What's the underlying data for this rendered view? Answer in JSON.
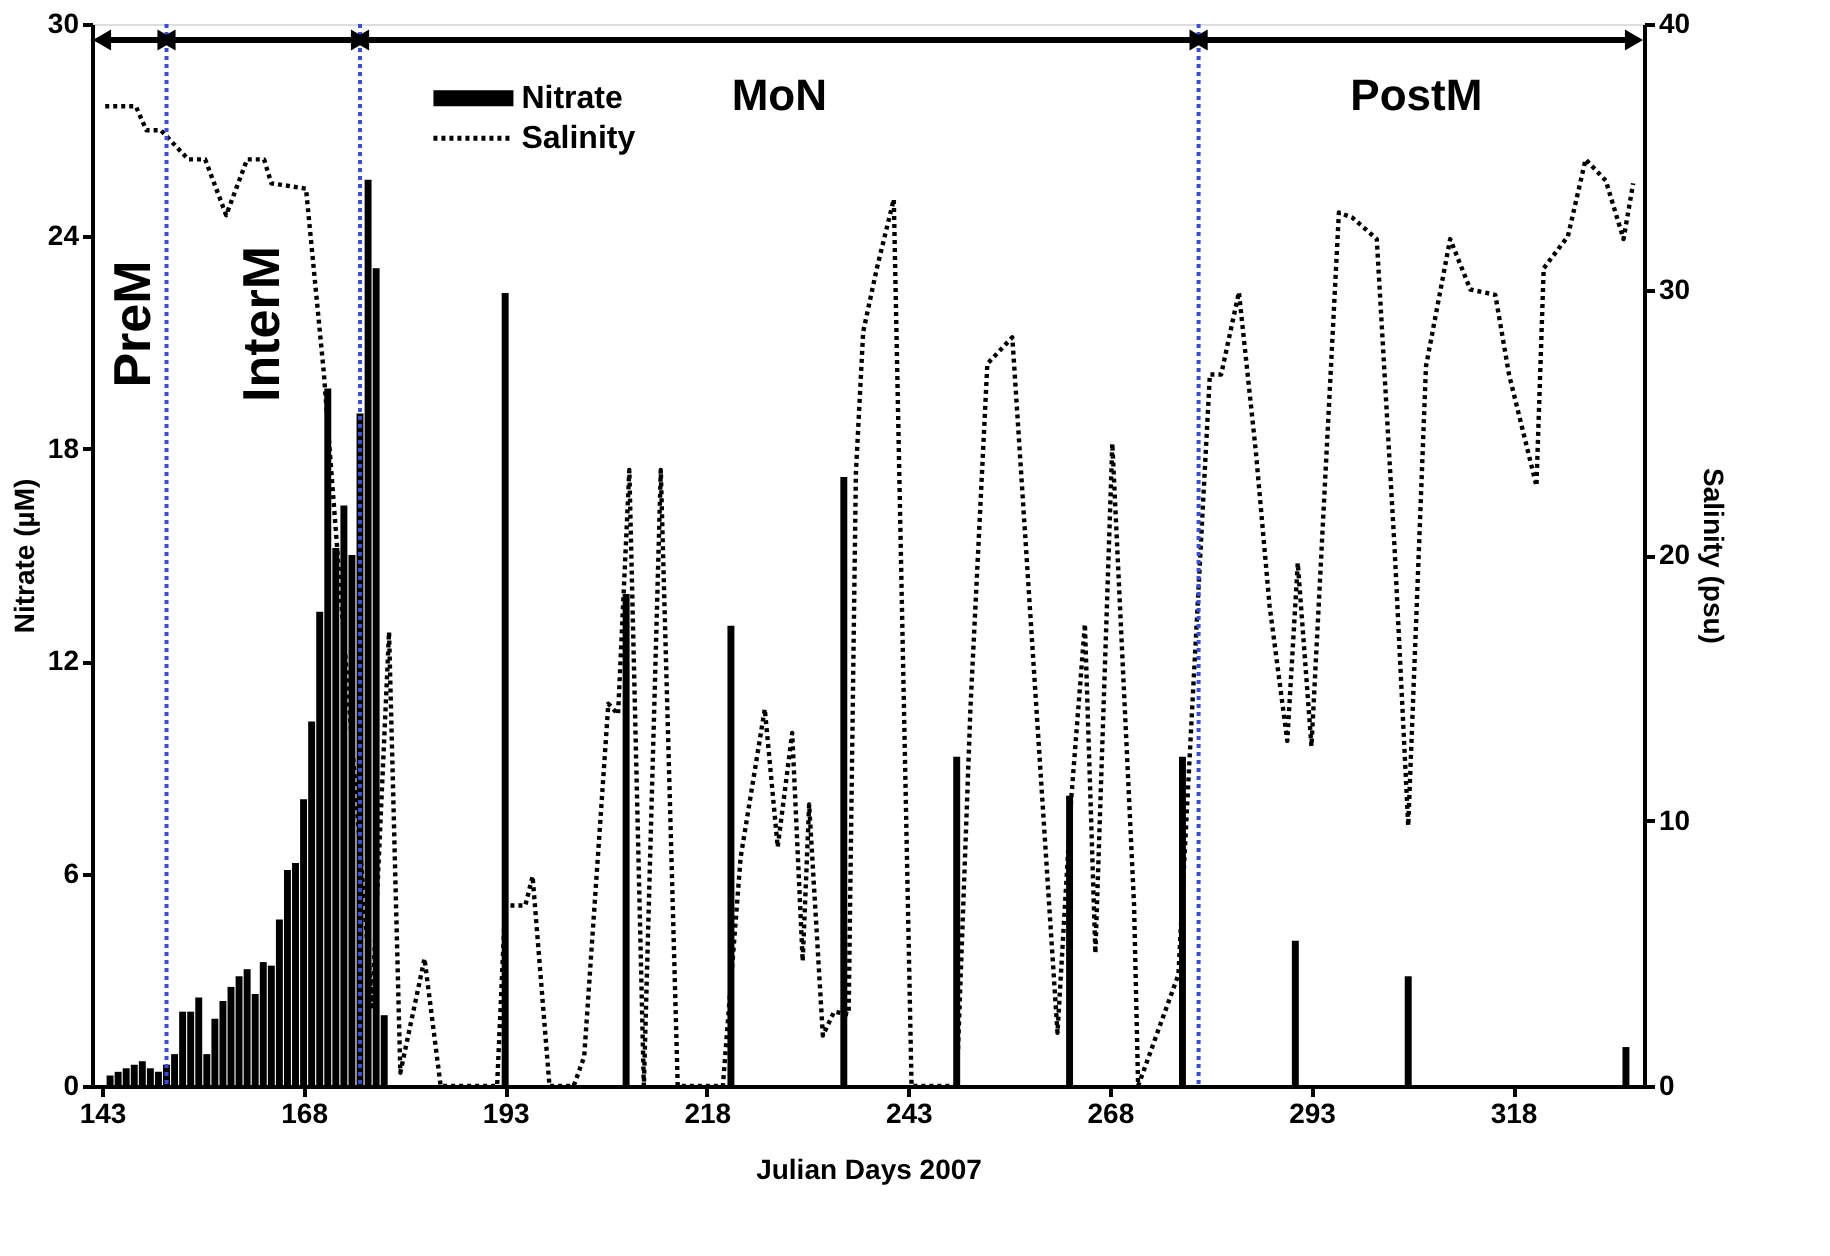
{
  "chart_data": {
    "type": "bar",
    "xlabel": "Julian Days 2007",
    "ylabel": "Nitrate (µM)",
    "y2label": "Salinity (psu)",
    "xlim": [
      143,
      333
    ],
    "xticks": [
      143,
      168,
      193,
      218,
      243,
      268,
      293,
      318
    ],
    "ylim": [
      0,
      30
    ],
    "yticks": [
      0,
      6,
      12,
      18,
      24,
      30
    ],
    "y2lim": [
      0,
      40
    ],
    "y2ticks": [
      0,
      10,
      20,
      30,
      40
    ],
    "legend": "top",
    "grid": false,
    "series": [
      {
        "name": "Nitrate",
        "color": "#000000",
        "x": [
          144,
          145,
          146,
          147,
          148,
          149,
          150,
          151,
          152,
          153,
          154,
          155,
          156,
          157,
          158,
          159,
          160,
          161,
          162,
          163,
          164,
          165,
          166,
          167,
          168,
          169,
          170,
          171,
          172,
          173,
          174,
          175,
          176,
          177,
          178,
          193,
          208,
          221,
          235,
          249,
          263,
          277,
          291,
          305,
          332
        ],
        "values": [
          0.3,
          0.4,
          0.5,
          0.6,
          0.7,
          0.5,
          0.4,
          0.6,
          0.9,
          2.1,
          2.1,
          2.5,
          0.9,
          1.9,
          2.4,
          2.8,
          3.1,
          3.3,
          2.6,
          3.5,
          3.4,
          4.7,
          6.1,
          6.3,
          8.1,
          10.3,
          13.4,
          19.7,
          15.2,
          16.4,
          15.0,
          19.0,
          25.6,
          23.1,
          2.0,
          22.4,
          13.9,
          13.0,
          17.2,
          9.3,
          8.2,
          9.3,
          4.1,
          3.1,
          1.1
        ]
      },
      {
        "name": "Salinity",
        "type": "line",
        "axis": "y2",
        "line_style": "dotted",
        "color": "#000000",
        "x": [
          143.4,
          147.2,
          148.5,
          150.3,
          153.7,
          155.8,
          158.4,
          161,
          163.1,
          164,
          168.3,
          170.5,
          176.5,
          178.6,
          180,
          183,
          185,
          192,
          193,
          195.5,
          196.4,
          198.5,
          201.5,
          202.8,
          205.8,
          207,
          208.4,
          210.2,
          212.3,
          214.4,
          220,
          222.2,
          225.2,
          226.8,
          228.6,
          229.9,
          230.7,
          232.4,
          233.8,
          235.6,
          236.5,
          237.4,
          239.1,
          241.2,
          243.4,
          249,
          250.7,
          252.8,
          255.9,
          261.5,
          263.2,
          264.9,
          266.2,
          268.3,
          271,
          271.5,
          276.5,
          278.2,
          280.4,
          281.8,
          284,
          286.1,
          287.8,
          290,
          291.3,
          293,
          296.4,
          298.1,
          301.1,
          303.3,
          305,
          307.2,
          310.2,
          312.7,
          315.8,
          317.5,
          320.9,
          321.8,
          324.8,
          327,
          329.5,
          331.7,
          332.9
        ],
        "values": [
          36.9,
          36.9,
          36.0,
          36.0,
          34.9,
          34.9,
          32.8,
          34.9,
          34.9,
          34.0,
          33.8,
          26.9,
          3.0,
          17.1,
          0.5,
          4.8,
          0,
          0,
          6.8,
          6.8,
          7.9,
          0,
          0,
          1.1,
          14.4,
          14.0,
          23.2,
          0,
          23.2,
          0,
          0,
          8.6,
          14.2,
          9.0,
          13.3,
          4.7,
          10.6,
          1.9,
          2.8,
          2.7,
          23.1,
          28.4,
          30.8,
          33.4,
          0,
          0,
          14.2,
          27.2,
          28.2,
          2.0,
          10.8,
          17.4,
          5.0,
          24.2,
          6.8,
          0,
          4.2,
          14.2,
          26.8,
          26.8,
          29.9,
          23.9,
          18.1,
          13.0,
          19.7,
          12.8,
          32.9,
          32.7,
          31.9,
          20.3,
          9.8,
          27.1,
          31.9,
          30.0,
          29.8,
          26.8,
          22.6,
          30.8,
          32.0,
          34.9,
          34.1,
          31.9,
          34.0
        ]
      }
    ],
    "ref_lines": [
      {
        "axis": "x",
        "value": 151,
        "color": "#3a4fd0",
        "line_style": "dotted"
      },
      {
        "axis": "x",
        "value": 175,
        "color": "#3a4fd0",
        "line_style": "dotted"
      },
      {
        "axis": "x",
        "value": 279,
        "color": "#3a4fd0",
        "line_style": "dotted"
      }
    ],
    "annotations": [
      "PreM",
      "InterM",
      "MoN",
      "PostM"
    ]
  }
}
